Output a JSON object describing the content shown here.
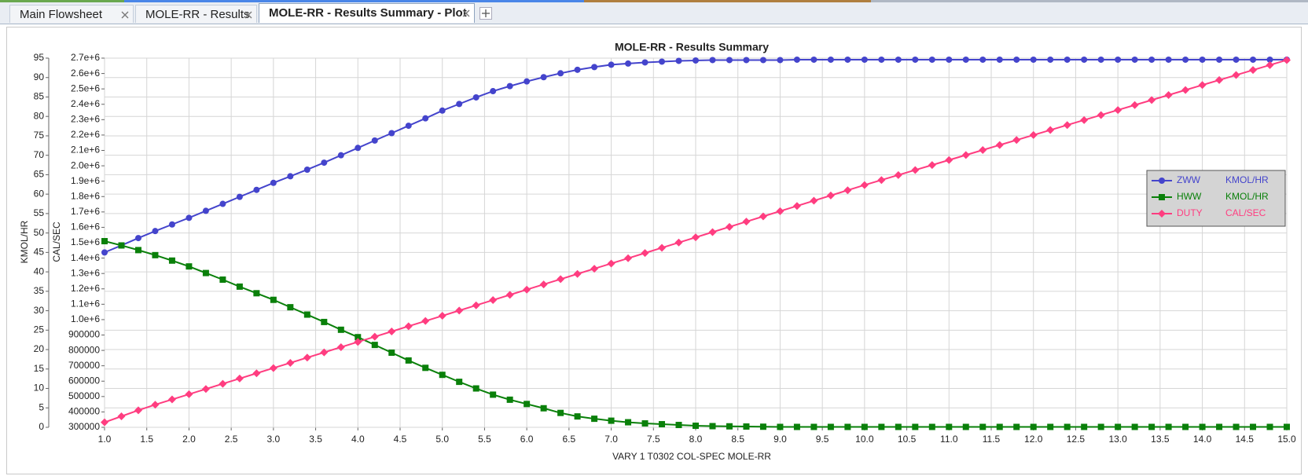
{
  "tabs": [
    {
      "label": "Main Flowsheet",
      "active": false
    },
    {
      "label": "MOLE-RR - Results",
      "active": false
    },
    {
      "label": "MOLE-RR - Results Summary - Plot",
      "active": true
    }
  ],
  "chart_data": {
    "type": "line",
    "title": "MOLE-RR - Results Summary",
    "x_label": "VARY   1 T0302    COL-SPEC MOLE-RR",
    "y_label": "KMOL/HR",
    "y2_label": "CAL/SEC",
    "grid": true,
    "legend": "right",
    "xlim": [
      1,
      15
    ],
    "xticks": [
      {
        "value": 1,
        "label": "1.0"
      },
      1.5,
      {
        "value": 2,
        "label": "2.0"
      },
      2.5,
      {
        "value": 3,
        "label": "3.0"
      },
      3.5,
      {
        "value": 4,
        "label": "4.0"
      },
      4.5,
      {
        "value": 5,
        "label": "5.0"
      },
      5.5,
      {
        "value": 6,
        "label": "6.0"
      },
      6.5,
      {
        "value": 7,
        "label": "7.0"
      },
      7.5,
      {
        "value": 8,
        "label": "8.0"
      },
      8.5,
      {
        "value": 9,
        "label": "9.0"
      },
      9.5,
      {
        "value": 10,
        "label": "10.0"
      },
      10.5,
      {
        "value": 11,
        "label": "11.0"
      },
      11.5,
      {
        "value": 12,
        "label": "12.0"
      },
      12.5,
      {
        "value": 13,
        "label": "13.0"
      },
      13.5,
      {
        "value": 14,
        "label": "14.0"
      },
      14.5,
      {
        "value": 15,
        "label": "15.0"
      }
    ],
    "ylim": [
      0,
      95
    ],
    "yticks": [
      0,
      5,
      10,
      15,
      20,
      25,
      30,
      35,
      40,
      45,
      50,
      55,
      60,
      65,
      70,
      75,
      80,
      85,
      90,
      95
    ],
    "y2lim": [
      300000,
      2700000
    ],
    "y2ticks": [
      300000,
      400000,
      500000,
      600000,
      700000,
      800000,
      900000,
      {
        "value": 1000000,
        "label": "1.0e+6"
      },
      {
        "value": 1100000,
        "label": "1.1e+6"
      },
      {
        "value": 1200000,
        "label": "1.2e+6"
      },
      {
        "value": 1300000,
        "label": "1.3e+6"
      },
      {
        "value": 1400000,
        "label": "1.4e+6"
      },
      {
        "value": 1500000,
        "label": "1.5e+6"
      },
      {
        "value": 1600000,
        "label": "1.6e+6"
      },
      {
        "value": 1700000,
        "label": "1.7e+6"
      },
      {
        "value": 1800000,
        "label": "1.8e+6"
      },
      {
        "value": 1900000,
        "label": "1.9e+6"
      },
      {
        "value": 2000000,
        "label": "2.0e+6"
      },
      {
        "value": 2100000,
        "label": "2.1e+6"
      },
      {
        "value": 2200000,
        "label": "2.2e+6"
      },
      {
        "value": 2300000,
        "label": "2.3e+6"
      },
      {
        "value": 2400000,
        "label": "2.4e+6"
      },
      {
        "value": 2500000,
        "label": "2.5e+6"
      },
      {
        "value": 2600000,
        "label": "2.6e+6"
      },
      {
        "value": 2700000,
        "label": "2.7e+6"
      }
    ],
    "x": [
      1,
      1.2,
      1.4,
      1.6,
      1.8,
      2,
      2.2,
      2.4,
      2.6,
      2.8,
      3,
      3.2,
      3.4,
      3.6,
      3.8,
      4,
      4.2,
      4.4,
      4.6,
      4.8,
      5,
      5.2,
      5.4,
      5.6,
      5.8,
      6,
      6.2,
      6.4,
      6.6,
      6.8,
      7,
      7.2,
      7.4,
      7.6,
      7.8,
      8,
      8.2,
      8.4,
      8.6,
      8.8,
      9,
      9.2,
      9.4,
      9.6,
      9.8,
      10,
      10.2,
      10.4,
      10.6,
      10.8,
      11,
      11.2,
      11.4,
      11.6,
      11.8,
      12,
      12.2,
      12.4,
      12.6,
      12.8,
      13,
      13.2,
      13.4,
      13.6,
      13.8,
      14,
      14.2,
      14.4,
      14.6,
      14.8,
      15
    ],
    "series": [
      {
        "name": "ZWW",
        "unit": "KMOL/HR",
        "color": "#4444cc",
        "marker": "circle",
        "values": [
          45,
          46.8,
          48.7,
          50.5,
          52.2,
          53.9,
          55.7,
          57.5,
          59.3,
          61.1,
          62.9,
          64.6,
          66.3,
          68.1,
          70,
          71.9,
          73.8,
          75.7,
          77.6,
          79.5,
          81.5,
          83.2,
          84.9,
          86.5,
          87.8,
          89,
          90.1,
          91.1,
          92,
          92.7,
          93.3,
          93.6,
          93.9,
          94.1,
          94.3,
          94.4,
          94.5,
          94.5,
          94.5,
          94.5,
          94.5,
          94.6,
          94.6,
          94.6,
          94.6,
          94.6,
          94.6,
          94.6,
          94.6,
          94.6,
          94.6,
          94.6,
          94.6,
          94.6,
          94.6,
          94.6,
          94.6,
          94.6,
          94.6,
          94.6,
          94.6,
          94.6,
          94.6,
          94.6,
          94.6,
          94.6,
          94.6,
          94.6,
          94.6,
          94.6,
          94.6
        ]
      },
      {
        "name": "HWW",
        "unit": "KMOL/HR",
        "color": "#0a800a",
        "marker": "square",
        "values": [
          47.9,
          46.8,
          45.6,
          44.3,
          42.9,
          41.4,
          39.7,
          38,
          36.2,
          34.5,
          32.8,
          30.9,
          29,
          27.1,
          25.1,
          23.2,
          21.2,
          19.2,
          17.2,
          15.3,
          13.5,
          11.7,
          10,
          8.4,
          7.1,
          6,
          4.9,
          3.7,
          2.8,
          2.2,
          1.7,
          1.3,
          1,
          0.8,
          0.6,
          0.4,
          0.3,
          0.25,
          0.2,
          0.15,
          0.1,
          0.1,
          0.1,
          0.1,
          0.1,
          0.1,
          0.1,
          0.1,
          0.1,
          0.1,
          0.1,
          0.1,
          0.1,
          0.1,
          0.1,
          0.1,
          0.1,
          0.1,
          0.1,
          0.1,
          0.1,
          0.1,
          0.1,
          0.1,
          0.1,
          0.1,
          0.1,
          0.1,
          0.1,
          0.1,
          0.1
        ]
      },
      {
        "name": "DUTY",
        "unit": "CAL/SEC",
        "color": "#ff3d80",
        "marker": "diamond",
        "axis": "y2",
        "values": [
          332500,
          371500,
          410500,
          447000,
          481000,
          515000,
          549000,
          583000,
          617000,
          651000,
          685000,
          719000,
          753000,
          787000,
          821000,
          855000,
          889000,
          923000,
          957000,
          991000,
          1025000,
          1059000,
          1093000,
          1127000,
          1161000,
          1195000,
          1229000,
          1263000,
          1297000,
          1331000,
          1365000,
          1399000,
          1433000,
          1467000,
          1501000,
          1535000,
          1569000,
          1603000,
          1637000,
          1671000,
          1705000,
          1739000,
          1773000,
          1807000,
          1841000,
          1875000,
          1907500,
          1940000,
          1972500,
          2005000,
          2037500,
          2070000,
          2102500,
          2135000,
          2167500,
          2200000,
          2232500,
          2265000,
          2297500,
          2330000,
          2362500,
          2395000,
          2427500,
          2460000,
          2492500,
          2525000,
          2557500,
          2590000,
          2622500,
          2655000,
          2687500
        ]
      }
    ]
  }
}
